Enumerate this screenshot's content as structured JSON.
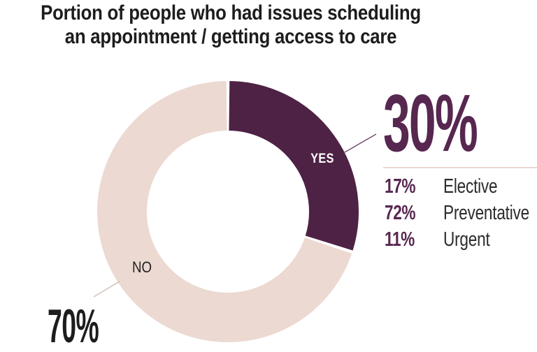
{
  "title": {
    "line1": "Portion of people who had issues scheduling",
    "line2": "an appointment / getting access to care"
  },
  "chart_data": {
    "type": "pie",
    "subtype": "donut",
    "title": "Portion of people who had issues scheduling an appointment / getting access to care",
    "slices": [
      {
        "label": "YES",
        "value": 30,
        "color": "#4e2245",
        "callout": "30%"
      },
      {
        "label": "NO",
        "value": 70,
        "color": "#ecd9d2",
        "callout": "70%"
      }
    ],
    "start_angle_deg": 0,
    "direction": "clockwise",
    "inner_radius_ratio": 0.62,
    "legend_position": "in-slice",
    "breakdown_of_yes": [
      {
        "pct": "17%",
        "label": "Elective"
      },
      {
        "pct": "72%",
        "label": "Preventative"
      },
      {
        "pct": "11%",
        "label": "Urgent"
      }
    ]
  },
  "callouts": {
    "yes": "30%",
    "no": "70%"
  },
  "colors": {
    "purple": "#4e2245",
    "purple_text": "#572750",
    "pink": "#ecd9d2",
    "ink": "#1e1c1d",
    "label_ink": "#2e2b2c",
    "leader_no": "#c9b2ac",
    "white": "#ffffff"
  }
}
